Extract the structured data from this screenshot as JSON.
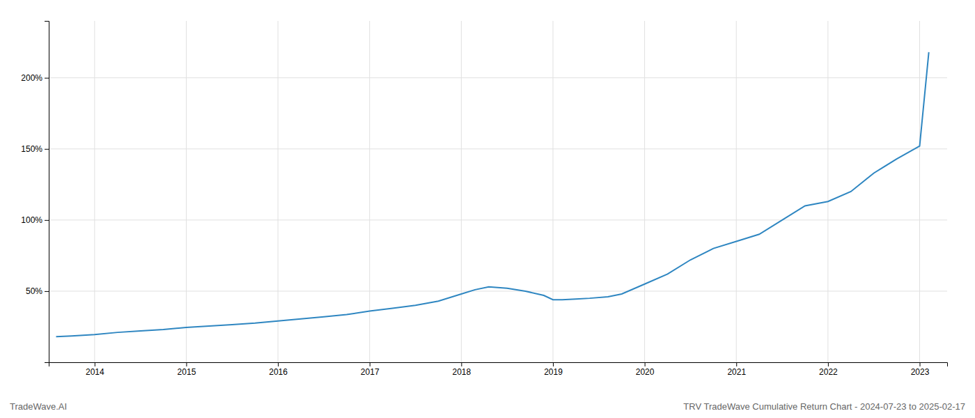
{
  "chart_data": {
    "type": "line",
    "title": "TRV TradeWave Cumulative Return Chart - 2024-07-23 to 2025-02-17",
    "annotations": [
      "TradeWave.AI"
    ],
    "color": "#2e86c1",
    "grid": true,
    "x": [
      2013.58,
      2013.75,
      2014.0,
      2014.25,
      2014.5,
      2014.75,
      2015.0,
      2015.25,
      2015.5,
      2015.75,
      2016.0,
      2016.25,
      2016.5,
      2016.75,
      2017.0,
      2017.25,
      2017.5,
      2017.75,
      2018.0,
      2018.15,
      2018.3,
      2018.5,
      2018.7,
      2018.9,
      2019.0,
      2019.1,
      2019.25,
      2019.4,
      2019.6,
      2019.75,
      2020.0,
      2020.25,
      2020.5,
      2020.75,
      2021.0,
      2021.25,
      2021.5,
      2021.75,
      2022.0,
      2022.25,
      2022.5,
      2022.75,
      2023.0,
      2023.1
    ],
    "values": [
      18,
      18.5,
      19.5,
      21,
      22,
      23,
      24.5,
      25.5,
      26.5,
      27.5,
      29,
      30.5,
      32,
      33.5,
      36,
      38,
      40,
      43,
      48,
      51,
      53,
      52,
      50,
      47,
      44,
      44,
      44.5,
      45,
      46,
      48,
      55,
      62,
      72,
      80,
      85,
      90,
      100,
      110,
      113,
      120,
      133,
      143,
      152,
      218
    ],
    "xlim": [
      2013.5,
      2023.3
    ],
    "xticks": [
      2014,
      2015,
      2016,
      2017,
      2018,
      2019,
      2020,
      2021,
      2022,
      2023
    ],
    "ylim": [
      0,
      240
    ],
    "yticks": [
      {
        "value": 50,
        "label": "50%"
      },
      {
        "value": 100,
        "label": "100%"
      },
      {
        "value": 150,
        "label": "150%"
      },
      {
        "value": 200,
        "label": "200%"
      }
    ]
  }
}
